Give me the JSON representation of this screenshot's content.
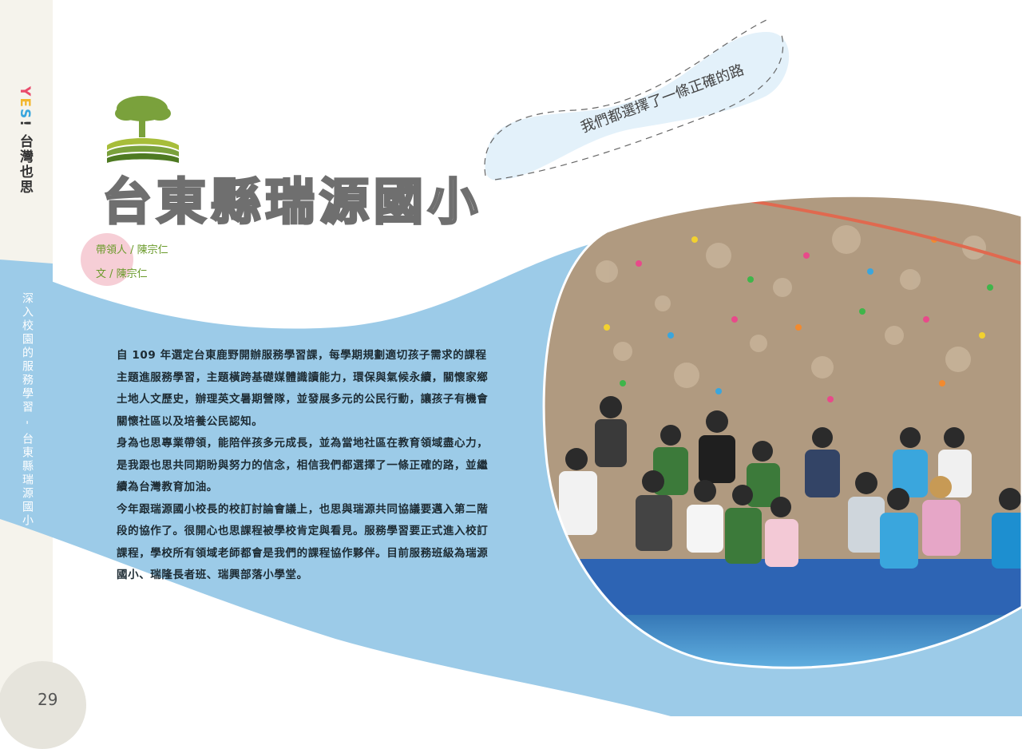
{
  "sidebar": {
    "brand_y": "Y",
    "brand_e": "E",
    "brand_s": "S",
    "brand_rest": "! 台灣也思",
    "section": "深入校園的服務學習 - 台東縣瑞源國小"
  },
  "page_number": "29",
  "title": "台東縣瑞源國小",
  "ribbon_text": "我們都選擇了一條正確的路",
  "credits": {
    "leader": "帶領人 / 陳宗仁",
    "author": "文 / 陳宗仁"
  },
  "body": [
    "自 109 年選定台東鹿野開辦服務學習課，每學期規劃適切孩子需求的課程主題進服務學習，主題橫跨基礎媒體識讀能力，環保與氣候永續，關懷家鄉土地人文歷史，辦理英文暑期營隊，並發展多元的公民行動，讓孩子有機會關懷社區以及培養公民認知。",
    "身為也思專業帶領，能陪伴孩多元成長，並為當地社區在教育領域盡心力，是我跟也思共同期盼與努力的信念，相信我們都選擇了一條正確的路，並繼續為台灣教育加油。",
    "今年跟瑞源國小校長的校訂討論會議上，也思與瑞源共同協議要邁入第二階段的協作了。很開心也思課程被學校肯定與看見。服務學習要正式進入校訂課程，學校所有領域老師都會是我們的課程協作夥伴。目前服務班級為瑞源國小、瑞隆長者班、瑞興部落小學堂。"
  ],
  "colors": {
    "wave": "#9ccbe8",
    "ribbon": "#e3f1fa",
    "accent_green": "#6a9a2a",
    "title_stroke": "#6f6f6f"
  },
  "photo": {
    "icon": "group-photo-climbing-wall"
  }
}
